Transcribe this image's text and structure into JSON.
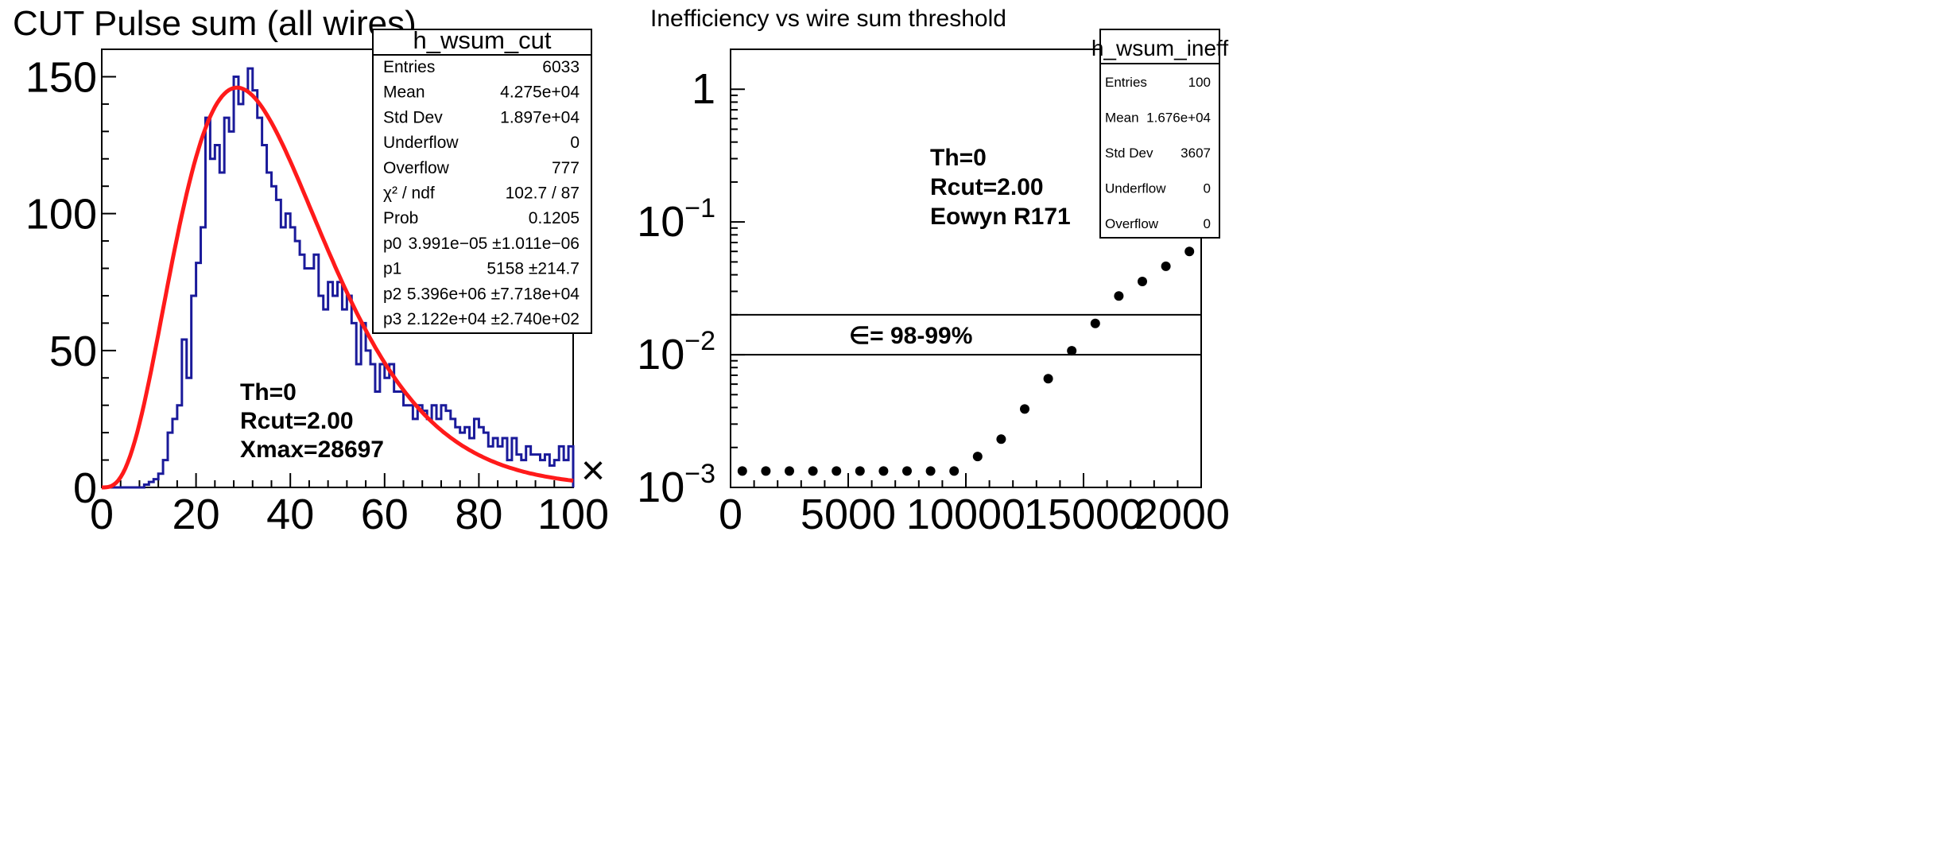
{
  "chart_data": [
    {
      "type": "bar",
      "title": "CUT Pulse sum (all wires)",
      "x_scale_label": "×",
      "xlim": [
        0,
        100
      ],
      "ylim": [
        0,
        160
      ],
      "x_ticks": [
        "0",
        "20",
        "40",
        "60",
        "80",
        "100"
      ],
      "y_ticks": [
        "0",
        "50",
        "100",
        "150"
      ],
      "histogram": {
        "bin_width": 1,
        "counts": [
          0,
          0,
          0,
          0,
          0,
          0,
          0,
          0,
          0,
          1,
          2,
          3,
          5,
          10,
          20,
          25,
          30,
          54,
          40,
          70,
          82,
          95,
          135,
          120,
          125,
          115,
          135,
          130,
          150,
          140,
          145,
          153,
          145,
          135,
          125,
          115,
          110,
          105,
          95,
          100,
          95,
          90,
          85,
          80,
          80,
          85,
          70,
          65,
          75,
          70,
          75,
          65,
          70,
          60,
          45,
          60,
          50,
          45,
          35,
          45,
          40,
          45,
          35,
          35,
          30,
          30,
          25,
          30,
          28,
          25,
          30,
          25,
          30,
          28,
          25,
          22,
          20,
          22,
          18,
          25,
          22,
          20,
          15,
          18,
          15,
          18,
          10,
          18,
          12,
          10,
          15,
          12,
          12,
          10,
          12,
          8,
          10,
          15,
          10,
          15
        ]
      },
      "fit": {
        "p0": 3.991e-05,
        "p1": 5158,
        "p2": 5396000,
        "p3": 21220,
        "peak": 146,
        "peak_x": 28.7,
        "color": "#ff1a1a"
      },
      "hist_color": "#1a1a9a",
      "stats_box": {
        "title": "h_wsum_cut",
        "rows": [
          {
            "label": "Entries",
            "value": "6033"
          },
          {
            "label": "Mean",
            "value": "4.275e+04"
          },
          {
            "label": "Std Dev",
            "value": "1.897e+04"
          },
          {
            "label": "Underflow",
            "value": "0"
          },
          {
            "label": "Overflow",
            "value": "777"
          },
          {
            "label": "χ² / ndf",
            "value": "102.7 / 87"
          },
          {
            "label": "Prob",
            "value": "0.1205"
          },
          {
            "label": "p0",
            "value": "3.991e−05 ±1.011e−06"
          },
          {
            "label": "p1",
            "value": "5158 ±214.7"
          },
          {
            "label": "p2",
            "value": "5.396e+06 ±7.718e+04"
          },
          {
            "label": "p3",
            "value": "2.122e+04 ±2.740e+02"
          }
        ]
      },
      "annotations": [
        "Th=0",
        "Rcut=2.00",
        "Xmax=28697"
      ]
    },
    {
      "type": "scatter",
      "title": "Inefficiency vs wire sum threshold",
      "y_scale": "log",
      "xlim": [
        0,
        20000
      ],
      "ylim": [
        0.001,
        2
      ],
      "x_ticks": [
        "0",
        "5000",
        "10000",
        "15000",
        "2000"
      ],
      "y_ticks": [
        "1",
        "10",
        "10",
        "10"
      ],
      "y_tick_exponents": [
        "",
        "−1",
        "−2",
        "−3"
      ],
      "points": {
        "x": [
          500,
          1500,
          2500,
          3500,
          4500,
          5500,
          6500,
          7500,
          8500,
          9500,
          10500,
          11500,
          12500,
          13500,
          14500,
          15500,
          16500,
          17500,
          18500,
          19500
        ],
        "y": [
          0.00133,
          0.00133,
          0.00133,
          0.00133,
          0.00133,
          0.00133,
          0.00133,
          0.00133,
          0.00133,
          0.00133,
          0.00171,
          0.00231,
          0.0039,
          0.0066,
          0.0107,
          0.0172,
          0.0277,
          0.0356,
          0.0464,
          0.06
        ]
      },
      "reference_lines": [
        0.02,
        0.01
      ],
      "band_label": "∈= 98-99%",
      "stats_box": {
        "title": "h_wsum_ineff",
        "rows": [
          {
            "label": "Entries",
            "value": "100"
          },
          {
            "label": "Mean",
            "value": "1.676e+04"
          },
          {
            "label": "Std Dev",
            "value": "3607"
          },
          {
            "label": "Underflow",
            "value": "0"
          },
          {
            "label": "Overflow",
            "value": "0"
          }
        ]
      },
      "annotations": [
        "Th=0",
        "Rcut=2.00",
        "Eowyn R171"
      ]
    }
  ]
}
